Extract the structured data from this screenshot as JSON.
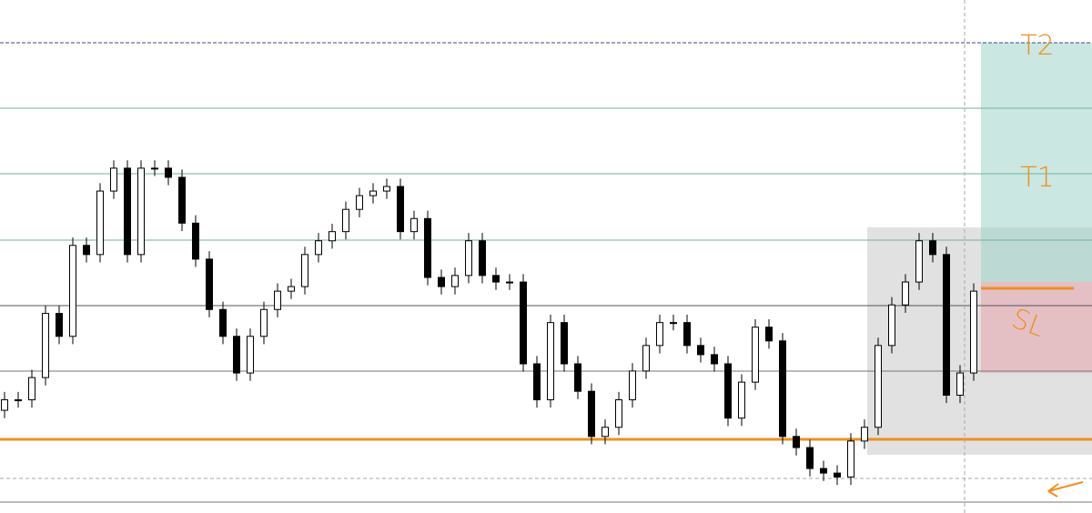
{
  "chart_data": {
    "type": "candlestick",
    "ylim": [
      -0.17,
      7.67
    ],
    "up_color": "#ffffff",
    "down_color": "#000000",
    "outline_color": "#000000",
    "open": [
      1.4,
      1.56,
      1.56,
      1.9,
      2.88,
      2.53,
      3.92,
      3.78,
      4.75,
      5.1,
      3.78,
      5.1,
      5.1,
      4.96,
      4.26,
      3.71,
      2.94,
      2.53,
      1.97,
      2.53,
      2.94,
      3.22,
      3.29,
      3.78,
      3.99,
      4.13,
      4.47,
      4.68,
      4.75,
      4.82,
      4.13,
      4.33,
      3.43,
      3.29,
      3.46,
      3.99,
      3.46,
      3.36,
      3.36,
      2.11,
      1.56,
      2.74,
      2.11,
      1.69,
      1.0,
      1.14,
      1.56,
      2.0,
      2.39,
      2.74,
      2.74,
      2.39,
      2.25,
      2.11,
      1.28,
      1.83,
      2.67,
      2.46,
      1.0,
      0.83,
      0.51,
      0.44,
      0.38,
      0.93,
      1.14,
      2.39,
      3.01,
      3.36,
      3.99,
      3.78,
      1.63,
      1.97
    ],
    "high": [
      1.68,
      1.68,
      2.02,
      3.0,
      3.0,
      4.04,
      4.04,
      4.87,
      5.22,
      5.22,
      5.22,
      5.22,
      5.22,
      5.08,
      4.38,
      3.83,
      3.06,
      2.65,
      2.65,
      3.06,
      3.34,
      3.41,
      3.9,
      4.11,
      4.25,
      4.59,
      4.8,
      4.87,
      4.94,
      4.94,
      4.45,
      4.45,
      3.55,
      3.58,
      4.11,
      4.11,
      3.58,
      3.48,
      3.48,
      2.23,
      2.86,
      2.86,
      2.23,
      1.81,
      1.26,
      1.68,
      2.12,
      2.51,
      2.86,
      2.86,
      2.86,
      2.51,
      2.37,
      2.23,
      1.95,
      2.79,
      2.79,
      2.58,
      1.12,
      0.95,
      0.63,
      0.56,
      1.05,
      1.26,
      2.51,
      3.13,
      3.48,
      4.11,
      4.11,
      3.9,
      2.09,
      3.34
    ],
    "low": [
      1.28,
      1.44,
      1.44,
      1.78,
      2.41,
      2.41,
      3.66,
      3.66,
      4.63,
      3.66,
      3.66,
      4.98,
      4.84,
      4.14,
      3.59,
      2.82,
      2.41,
      1.85,
      1.85,
      2.41,
      2.82,
      3.1,
      3.17,
      3.66,
      3.87,
      4.01,
      4.35,
      4.56,
      4.63,
      4.01,
      4.01,
      3.31,
      3.17,
      3.17,
      3.34,
      3.34,
      3.24,
      3.24,
      1.99,
      1.44,
      1.44,
      1.99,
      1.57,
      0.88,
      0.88,
      1.02,
      1.44,
      1.88,
      2.27,
      2.62,
      2.27,
      2.13,
      1.99,
      1.16,
      1.16,
      1.71,
      2.34,
      0.88,
      0.71,
      0.39,
      0.32,
      0.26,
      0.26,
      0.81,
      1.02,
      2.27,
      2.89,
      3.24,
      3.66,
      1.51,
      1.51,
      1.85
    ],
    "close": [
      1.56,
      1.56,
      1.9,
      2.88,
      2.53,
      3.92,
      3.78,
      4.75,
      5.1,
      3.78,
      5.1,
      5.1,
      4.96,
      4.26,
      3.71,
      2.94,
      2.53,
      1.97,
      2.53,
      2.94,
      3.22,
      3.29,
      3.78,
      3.99,
      4.13,
      4.47,
      4.68,
      4.75,
      4.82,
      4.13,
      4.33,
      3.43,
      3.29,
      3.46,
      3.99,
      3.46,
      3.36,
      3.36,
      2.11,
      1.56,
      2.74,
      2.11,
      1.69,
      1.0,
      1.14,
      1.56,
      2.0,
      2.39,
      2.74,
      2.74,
      2.39,
      2.25,
      2.11,
      1.28,
      1.83,
      2.67,
      2.46,
      1.0,
      0.83,
      0.51,
      0.44,
      0.38,
      0.93,
      1.14,
      2.39,
      3.01,
      3.36,
      3.99,
      3.78,
      1.63,
      1.97,
      3.22
    ],
    "annotations": [
      "T2",
      "T1",
      "SL"
    ]
  }
}
